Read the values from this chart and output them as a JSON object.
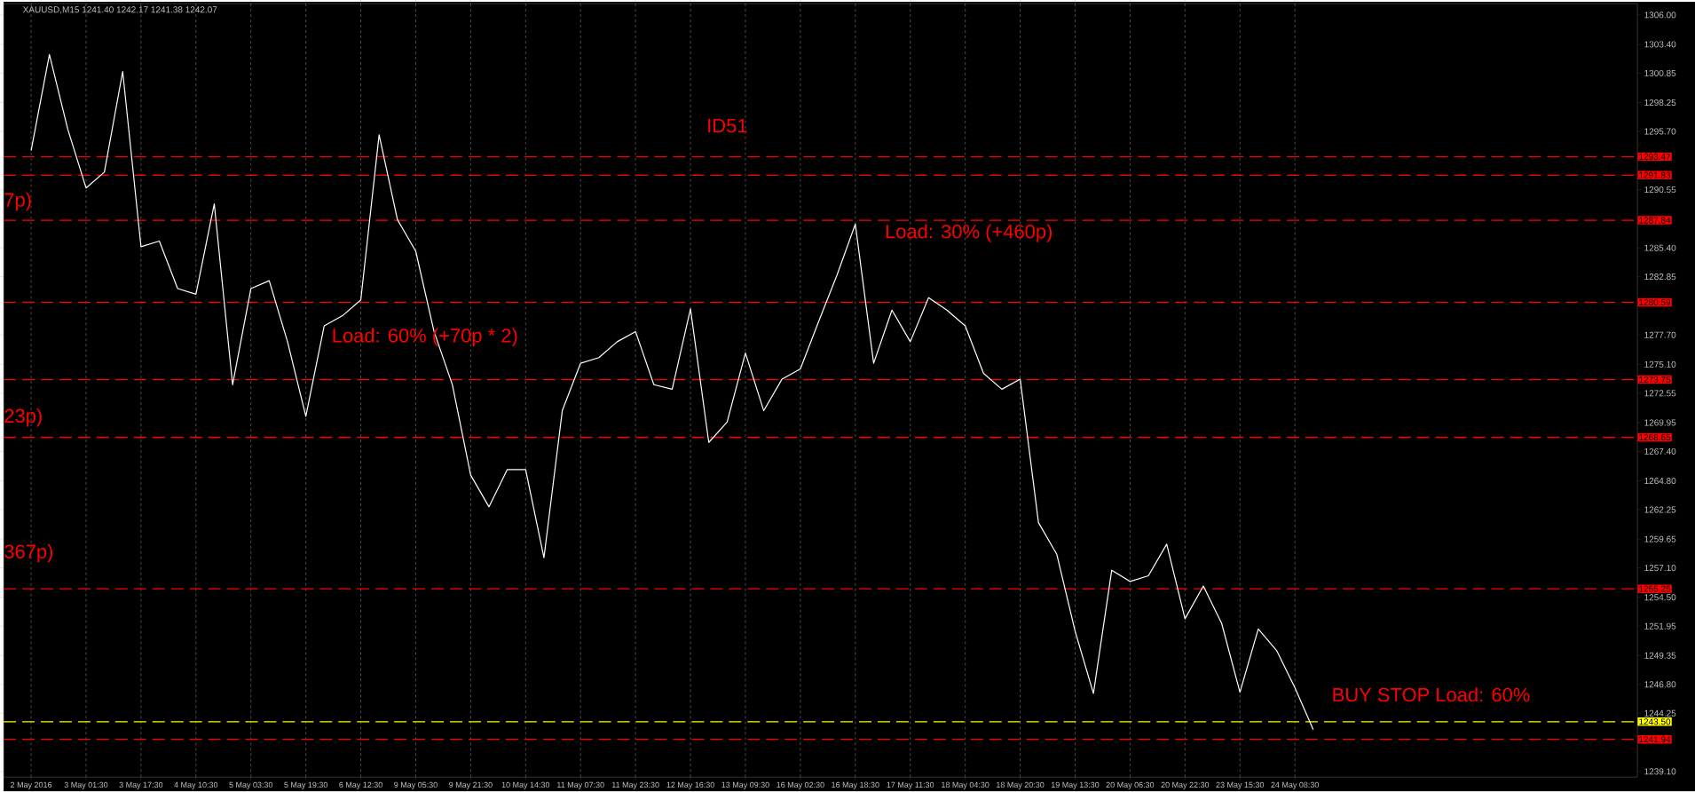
{
  "chart_data": {
    "type": "line",
    "title": "XAUUSD,M15  1241.40 1242.17 1241.38 1242.07",
    "categories": [
      "2 May 2016",
      null,
      null,
      "3 May 01:30",
      null,
      null,
      "3 May 17:30",
      null,
      null,
      "4 May 10:30",
      null,
      null,
      "5 May 03:30",
      null,
      null,
      "5 May 19:30",
      null,
      null,
      "6 May 12:30",
      null,
      null,
      "9 May 05:30",
      null,
      null,
      "9 May 21:30",
      null,
      null,
      "10 May 14:30",
      null,
      null,
      "11 May 07:30",
      null,
      null,
      "11 May 23:30",
      null,
      null,
      "12 May 16:30",
      null,
      null,
      "13 May 09:30",
      null,
      null,
      "16 May 02:30",
      null,
      null,
      "16 May 18:30",
      null,
      null,
      "17 May 11:30",
      null,
      null,
      "18 May 04:30",
      null,
      null,
      "18 May 20:30",
      null,
      null,
      "19 May 13:30",
      null,
      null,
      "20 May 06:30",
      null,
      null,
      "20 May 22:30",
      null,
      null,
      "23 May 15:30",
      null,
      null,
      "24 May 08:30",
      null,
      null,
      null,
      null,
      null,
      null,
      null,
      null,
      null,
      null,
      null,
      null,
      null,
      null,
      null,
      null,
      null,
      null
    ],
    "series": [
      {
        "color": "#ffffff",
        "values": [
          1294.0,
          1302.5,
          1295.9,
          1290.7,
          1292.1,
          1301.0,
          1285.5,
          1286.0,
          1281.8,
          1281.3,
          1289.3,
          1273.3,
          1281.8,
          1282.5,
          1277.1,
          1270.5,
          1278.5,
          1279.4,
          1280.8,
          1295.4,
          1287.9,
          1285.1,
          1278.0,
          1273.3,
          1265.3,
          1262.5,
          1265.8,
          1265.8,
          1258.0,
          1271.0,
          1275.2,
          1275.7,
          1277.1,
          1278.0,
          1273.3,
          1272.9,
          1280.0,
          1268.2,
          1270.0,
          1276.1,
          1271.0,
          1273.8,
          1274.7,
          1278.9,
          1283.0,
          1287.5,
          1275.2,
          1279.9,
          1277.1,
          1281.0,
          1279.9,
          1278.5,
          1274.3,
          1272.9,
          1273.8,
          1261.1,
          1258.3,
          1251.5,
          1246.0,
          1256.9,
          1255.9,
          1256.4,
          1259.2,
          1252.6,
          1255.5,
          1252.2,
          1246.1,
          1251.7,
          1249.8,
          1246.5,
          1242.8,
          null,
          null,
          null,
          null,
          null,
          null,
          null,
          null,
          null,
          null,
          null,
          null,
          null,
          null,
          null,
          null,
          null
        ]
      }
    ],
    "ylim": [
      1238.6,
      1307.0
    ],
    "yticks": [
      {
        "value": 1306.0,
        "label": "1306.00"
      },
      {
        "value": 1303.4,
        "label": "1303.40"
      },
      {
        "value": 1300.85,
        "label": "1300.85"
      },
      {
        "value": 1298.25,
        "label": "1298.25"
      },
      {
        "value": 1295.7,
        "label": "1295.70"
      },
      {
        "value": 1290.55,
        "label": "1290.55"
      },
      {
        "value": 1285.4,
        "label": "1285.40"
      },
      {
        "value": 1282.85,
        "label": "1282.85"
      },
      {
        "value": 1277.7,
        "label": "1277.70"
      },
      {
        "value": 1275.1,
        "label": "1275.10"
      },
      {
        "value": 1272.55,
        "label": "1272.55"
      },
      {
        "value": 1269.95,
        "label": "1269.95"
      },
      {
        "value": 1267.4,
        "label": "1267.40"
      },
      {
        "value": 1264.8,
        "label": "1264.80"
      },
      {
        "value": 1262.25,
        "label": "1262.25"
      },
      {
        "value": 1259.65,
        "label": "1259.65"
      },
      {
        "value": 1257.1,
        "label": "1257.10"
      },
      {
        "value": 1254.5,
        "label": "1254.50"
      },
      {
        "value": 1251.95,
        "label": "1251.95"
      },
      {
        "value": 1249.35,
        "label": "1249.35"
      },
      {
        "value": 1246.8,
        "label": "1246.80"
      },
      {
        "value": 1244.25,
        "label": "1244.25"
      },
      {
        "value": 1239.1,
        "label": "1239.10"
      }
    ],
    "grid": "x",
    "ref_lines": [
      {
        "axis": "y",
        "value": 1293.47,
        "label": "1293.47",
        "color": "#ff0000",
        "line_style": "dashed"
      },
      {
        "axis": "y",
        "value": 1291.83,
        "label": "1291.83",
        "color": "#ff0000",
        "line_style": "dashed"
      },
      {
        "axis": "y",
        "value": 1287.84,
        "label": "1287.84",
        "color": "#ff0000",
        "line_style": "dashed"
      },
      {
        "axis": "y",
        "value": 1280.59,
        "label": "1280.59",
        "color": "#ff0000",
        "line_style": "dashed"
      },
      {
        "axis": "y",
        "value": 1273.75,
        "label": "1273.75",
        "color": "#ff0000",
        "line_style": "dashed"
      },
      {
        "axis": "y",
        "value": 1268.65,
        "label": "1268.65",
        "color": "#ff0000",
        "line_style": "dashed"
      },
      {
        "axis": "y",
        "value": 1255.25,
        "label": "1255.25",
        "color": "#ff0000",
        "line_style": "dashed"
      },
      {
        "axis": "y",
        "value": 1243.5,
        "label": "1243.50",
        "color": "#ffff00",
        "line_style": "dashed"
      },
      {
        "axis": "y",
        "value": 1241.94,
        "label": "1241.94",
        "color": "#ff0000",
        "line_style": "dashed"
      }
    ],
    "annotations": [
      "ID51",
      "Load: 60% (+70p * 2)",
      "Load: 30% (+460p)",
      "BUY STOP Load: 60%",
      "7p)",
      "23p)",
      "367p)"
    ]
  }
}
